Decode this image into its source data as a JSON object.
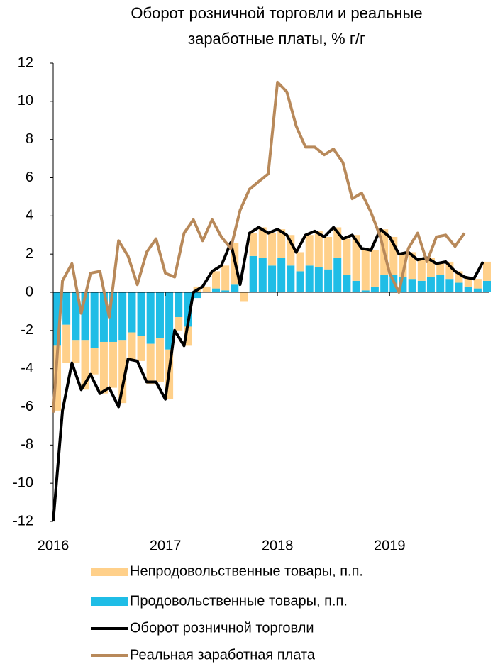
{
  "chart_data": {
    "type": "bar",
    "title": [
      "Оборот розничной торговли и реальные",
      "заработные платы, % г/г"
    ],
    "stacked": true,
    "x": [
      2016,
      2016.083,
      2016.167,
      2016.25,
      2016.333,
      2016.417,
      2016.5,
      2016.583,
      2016.667,
      2016.75,
      2016.833,
      2016.917,
      2017,
      2017.083,
      2017.167,
      2017.25,
      2017.333,
      2017.417,
      2017.5,
      2017.583,
      2017.667,
      2017.75,
      2017.833,
      2017.917,
      2018,
      2018.083,
      2018.167,
      2018.25,
      2018.333,
      2018.417,
      2018.5,
      2018.583,
      2018.667,
      2018.75,
      2018.833,
      2018.917,
      2019,
      2019.083,
      2019.167,
      2019.25,
      2019.333,
      2019.417,
      2019.5,
      2019.583,
      2019.667,
      2019.75,
      2019.833
    ],
    "series": [
      {
        "name": "Непродовольственные товары, п.п.",
        "type": "bar",
        "color": "#FFD08A",
        "values": [
          -3.4,
          -2.0,
          -1.2,
          -2.6,
          -1.4,
          -2.7,
          -2.4,
          -3.3,
          -1.4,
          -1.3,
          -2.1,
          -2.3,
          -2.6,
          -0.7,
          -1.0,
          0.3,
          0.3,
          0.9,
          1.3,
          2.2,
          -0.5,
          1.2,
          1.6,
          1.7,
          1.5,
          1.6,
          1.0,
          1.6,
          1.9,
          1.7,
          1.6,
          1.9,
          2.4,
          2.2,
          1.9,
          2.4,
          2.0,
          1.2,
          1.4,
          1.1,
          1.0,
          0.6,
          0.9,
          0.6,
          0.5,
          0.5,
          1.0
        ]
      },
      {
        "name": "Продовольственные товары, п.п.",
        "type": "bar",
        "color": "#1FBDE6",
        "values": [
          -2.8,
          -1.7,
          -2.5,
          -2.5,
          -2.9,
          -2.6,
          -2.6,
          -2.5,
          -2.1,
          -2.3,
          -2.7,
          -2.4,
          -3.0,
          -1.3,
          -1.8,
          -0.3,
          0.0,
          0.2,
          0.1,
          0.4,
          0.0,
          1.9,
          1.8,
          1.4,
          1.8,
          1.4,
          1.1,
          1.4,
          1.3,
          1.2,
          1.8,
          0.9,
          0.6,
          0.1,
          0.3,
          0.9,
          0.9,
          0.8,
          0.7,
          0.6,
          0.8,
          0.9,
          0.7,
          0.5,
          0.3,
          0.2,
          0.6
        ]
      },
      {
        "name": "Оборот розничной торговли",
        "type": "line",
        "color": "#000000",
        "values": [
          -12,
          -6.2,
          -3.7,
          -5.1,
          -4.3,
          -5.3,
          -5.0,
          -6.0,
          -3.5,
          -3.6,
          -4.7,
          -4.7,
          -5.6,
          -2.0,
          -2.8,
          0.0,
          0.3,
          1.1,
          1.4,
          2.6,
          0.4,
          3.1,
          3.4,
          3.1,
          3.3,
          3.0,
          2.1,
          3.0,
          3.2,
          2.9,
          3.4,
          2.8,
          3.0,
          2.3,
          2.2,
          3.3,
          2.9,
          2.0,
          2.1,
          1.7,
          1.8,
          1.5,
          1.6,
          1.1,
          0.8,
          0.7,
          1.6
        ]
      },
      {
        "name": "Реальная заработная плата",
        "type": "line",
        "color": "#B8895A",
        "values": [
          -6.3,
          0.6,
          1.5,
          -1.1,
          1.0,
          1.1,
          -1.3,
          2.7,
          1.9,
          0.4,
          2.1,
          2.8,
          1.0,
          0.8,
          3.1,
          3.8,
          2.7,
          3.8,
          2.9,
          2.3,
          4.3,
          5.4,
          5.8,
          6.2,
          11.0,
          10.5,
          8.7,
          7.6,
          7.6,
          7.2,
          7.5,
          6.8,
          4.9,
          5.2,
          4.2,
          2.9,
          1.0,
          0.0,
          2.3,
          3.1,
          1.6,
          2.9,
          3.0,
          2.4,
          3.1,
          null,
          null
        ]
      }
    ],
    "xlim": [
      2016,
      2019.89
    ],
    "xticks": [
      2016,
      2017,
      2018,
      2019
    ],
    "ylim": [
      -12,
      12
    ],
    "yticks": [
      12,
      10,
      8,
      6,
      4,
      2,
      0,
      -2,
      -4,
      -6,
      -8,
      -10,
      -12
    ],
    "grid": false
  }
}
